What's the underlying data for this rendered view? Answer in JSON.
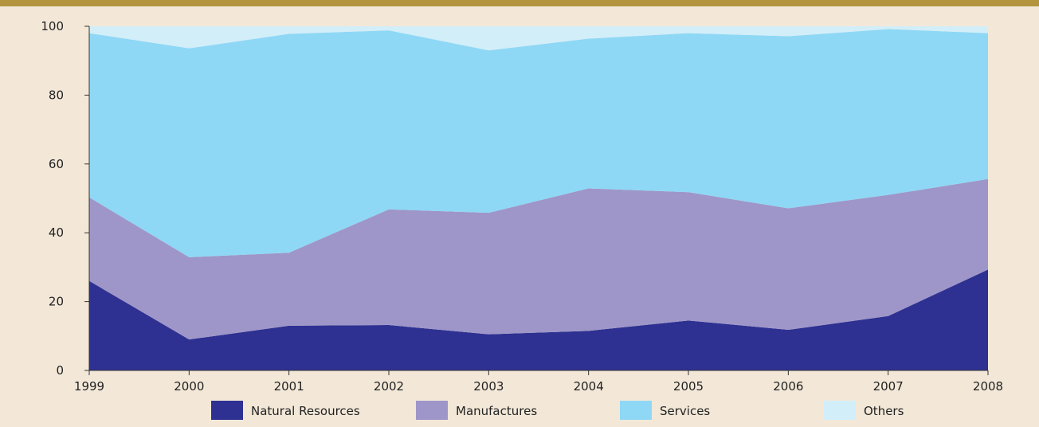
{
  "header": {
    "title": "",
    "bar_color": "#b3953f"
  },
  "chart_data": {
    "type": "area",
    "stacked": true,
    "percent": true,
    "x": [
      "1999",
      "2000",
      "2001",
      "2002",
      "2003",
      "2004",
      "2005",
      "2006",
      "2007",
      "2008"
    ],
    "ylim": [
      0,
      100
    ],
    "yticks": [
      "0",
      "20",
      "40",
      "60",
      "80",
      "100"
    ],
    "series": [
      {
        "name": "Natural Resources",
        "color": "#2e3192",
        "values": [
          26,
          9,
          13,
          13.2,
          10.5,
          11.5,
          14.5,
          11.8,
          15.8,
          29.3
        ]
      },
      {
        "name": "Manufactures",
        "color": "#9e96c8",
        "values": [
          24.3,
          23.9,
          21.2,
          33.6,
          35.3,
          41.4,
          37.3,
          35.3,
          35.2,
          26.3
        ]
      },
      {
        "name": "Services",
        "color": "#8ed8f6",
        "values": [
          47.7,
          60.7,
          63.6,
          52,
          47.2,
          43.5,
          46.2,
          50,
          48.2,
          42.4
        ]
      },
      {
        "name": "Others",
        "color": "#d2eef9",
        "values": [
          2,
          6.4,
          2.2,
          1.2,
          7,
          3.6,
          2,
          2.9,
          0.8,
          2
        ]
      }
    ],
    "grid": false,
    "legend": "bottom"
  }
}
